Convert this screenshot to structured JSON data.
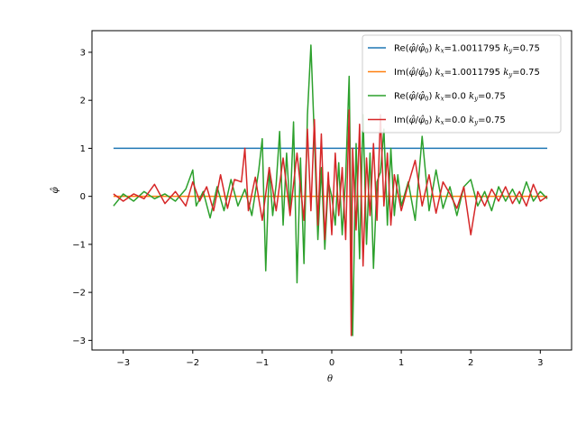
{
  "chart_data": {
    "type": "line",
    "title": "",
    "xlabel": "θ",
    "ylabel": "φ̂",
    "xlim": [
      -3.45,
      3.45
    ],
    "ylim": [
      -3.2,
      3.45
    ],
    "xticks": [
      -3,
      -2,
      -1,
      0,
      1,
      2,
      3
    ],
    "yticks": [
      -3,
      -2,
      -1,
      0,
      1,
      2,
      3
    ],
    "xtick_labels": [
      "−3",
      "−2",
      "−1",
      "0",
      "1",
      "2",
      "3"
    ],
    "ytick_labels": [
      "−3",
      "−2",
      "−1",
      "0",
      "1",
      "2",
      "3"
    ],
    "grid": false,
    "legend_position": "top-right",
    "series": [
      {
        "name": "Re(φ̂/φ̂₀) kx=1.0011795 ky=0.75",
        "color": "#1f77b4",
        "x": [
          -3.14,
          3.1
        ],
        "y": [
          1.0,
          1.0
        ]
      },
      {
        "name": "Im(φ̂/φ̂₀) kx=1.0011795 ky=0.75",
        "color": "#ff7f0e",
        "x": [
          -3.14,
          3.1
        ],
        "y": [
          0.0,
          0.0
        ]
      },
      {
        "name": "Re(φ̂/φ̂₀) kx=0.0 ky=0.75",
        "color": "#2ca02c",
        "x": [
          -3.14,
          -3.0,
          -2.85,
          -2.7,
          -2.55,
          -2.4,
          -2.25,
          -2.1,
          -2.0,
          -1.95,
          -1.85,
          -1.75,
          -1.65,
          -1.55,
          -1.45,
          -1.35,
          -1.25,
          -1.15,
          -1.05,
          -1.0,
          -0.95,
          -0.9,
          -0.85,
          -0.8,
          -0.75,
          -0.7,
          -0.65,
          -0.6,
          -0.55,
          -0.5,
          -0.45,
          -0.4,
          -0.35,
          -0.3,
          -0.25,
          -0.2,
          -0.15,
          -0.1,
          -0.05,
          0.0,
          0.05,
          0.1,
          0.15,
          0.2,
          0.25,
          0.3,
          0.35,
          0.4,
          0.45,
          0.5,
          0.55,
          0.6,
          0.65,
          0.7,
          0.75,
          0.8,
          0.85,
          0.9,
          0.95,
          1.0,
          1.1,
          1.2,
          1.3,
          1.4,
          1.5,
          1.6,
          1.7,
          1.8,
          1.9,
          2.0,
          2.1,
          2.2,
          2.3,
          2.4,
          2.5,
          2.6,
          2.7,
          2.8,
          2.9,
          3.0,
          3.1
        ],
        "y": [
          -0.2,
          0.05,
          -0.1,
          0.1,
          -0.05,
          0.05,
          -0.1,
          0.15,
          0.55,
          -0.2,
          0.1,
          -0.45,
          0.2,
          -0.3,
          0.35,
          -0.2,
          0.15,
          -0.4,
          0.55,
          1.2,
          -1.55,
          0.6,
          -0.4,
          0.25,
          1.35,
          -0.6,
          0.9,
          -0.3,
          1.55,
          -1.8,
          0.8,
          -1.4,
          1.7,
          3.15,
          1.2,
          -0.9,
          0.6,
          -1.1,
          0.3,
          0.0,
          -0.6,
          0.7,
          -0.8,
          0.4,
          2.5,
          -2.9,
          1.1,
          -1.3,
          1.7,
          -1.0,
          0.9,
          -1.5,
          0.3,
          0.5,
          1.4,
          -0.6,
          1.0,
          -0.4,
          0.45,
          -0.2,
          0.3,
          -0.5,
          1.25,
          -0.3,
          0.55,
          -0.25,
          0.2,
          -0.4,
          0.2,
          0.35,
          -0.2,
          0.1,
          -0.3,
          0.2,
          -0.1,
          0.15,
          -0.15,
          0.3,
          -0.1,
          0.1,
          -0.05
        ]
      },
      {
        "name": "Im(φ̂/φ̂₀) kx=0.0 ky=0.75",
        "color": "#d62728",
        "x": [
          -3.14,
          -3.0,
          -2.85,
          -2.7,
          -2.55,
          -2.4,
          -2.25,
          -2.1,
          -2.0,
          -1.9,
          -1.8,
          -1.7,
          -1.6,
          -1.5,
          -1.4,
          -1.3,
          -1.25,
          -1.2,
          -1.1,
          -1.0,
          -0.9,
          -0.8,
          -0.7,
          -0.6,
          -0.5,
          -0.4,
          -0.35,
          -0.3,
          -0.25,
          -0.2,
          -0.15,
          -0.1,
          -0.05,
          0.0,
          0.05,
          0.1,
          0.15,
          0.2,
          0.25,
          0.28,
          0.3,
          0.35,
          0.4,
          0.45,
          0.5,
          0.55,
          0.6,
          0.65,
          0.7,
          0.75,
          0.8,
          0.85,
          0.9,
          1.0,
          1.1,
          1.2,
          1.3,
          1.4,
          1.5,
          1.6,
          1.7,
          1.8,
          1.9,
          2.0,
          2.1,
          2.2,
          2.3,
          2.4,
          2.5,
          2.6,
          2.7,
          2.8,
          2.9,
          3.0,
          3.1
        ],
        "y": [
          0.05,
          -0.1,
          0.05,
          -0.05,
          0.25,
          -0.15,
          0.1,
          -0.2,
          0.3,
          -0.1,
          0.2,
          -0.3,
          0.45,
          -0.25,
          0.35,
          0.3,
          1.0,
          -0.3,
          0.4,
          -0.5,
          0.6,
          -0.3,
          0.8,
          -0.4,
          0.9,
          -0.5,
          1.4,
          -0.3,
          1.6,
          -0.6,
          1.3,
          -0.9,
          0.5,
          -0.8,
          0.9,
          -0.4,
          0.6,
          -0.9,
          1.8,
          -2.9,
          1.0,
          -0.7,
          1.5,
          -1.45,
          0.8,
          -0.4,
          1.1,
          -0.5,
          1.7,
          -0.2,
          0.9,
          -0.6,
          0.45,
          -0.3,
          0.25,
          0.75,
          -0.2,
          0.45,
          -0.35,
          0.3,
          0.05,
          -0.25,
          0.2,
          -0.8,
          0.1,
          -0.2,
          0.15,
          -0.1,
          0.2,
          -0.15,
          0.1,
          -0.2,
          0.25,
          -0.1,
          0.0
        ]
      }
    ]
  },
  "legend": {
    "entries": [
      {
        "prefix": "Re(",
        "num": "φ̂",
        "sep": "/",
        "den": "φ̂",
        "den_sub": "0",
        "close": ") ",
        "kx": "=1.0011795 ",
        "ky": "=0.75",
        "color": "#1f77b4"
      },
      {
        "prefix": "Im(",
        "num": "φ̂",
        "sep": "/",
        "den": "φ̂",
        "den_sub": "0",
        "close": ") ",
        "kx": "=1.0011795 ",
        "ky": "=0.75",
        "color": "#ff7f0e"
      },
      {
        "prefix": "Re(",
        "num": "φ̂",
        "sep": "/",
        "den": "φ̂",
        "den_sub": "0",
        "close": ") ",
        "kx": "=0.0 ",
        "ky": "=0.75",
        "color": "#2ca02c"
      },
      {
        "prefix": "Im(",
        "num": "φ̂",
        "sep": "/",
        "den": "φ̂",
        "den_sub": "0",
        "close": ") ",
        "kx": "=0.0 ",
        "ky": "=0.75",
        "color": "#d62728"
      }
    ]
  }
}
